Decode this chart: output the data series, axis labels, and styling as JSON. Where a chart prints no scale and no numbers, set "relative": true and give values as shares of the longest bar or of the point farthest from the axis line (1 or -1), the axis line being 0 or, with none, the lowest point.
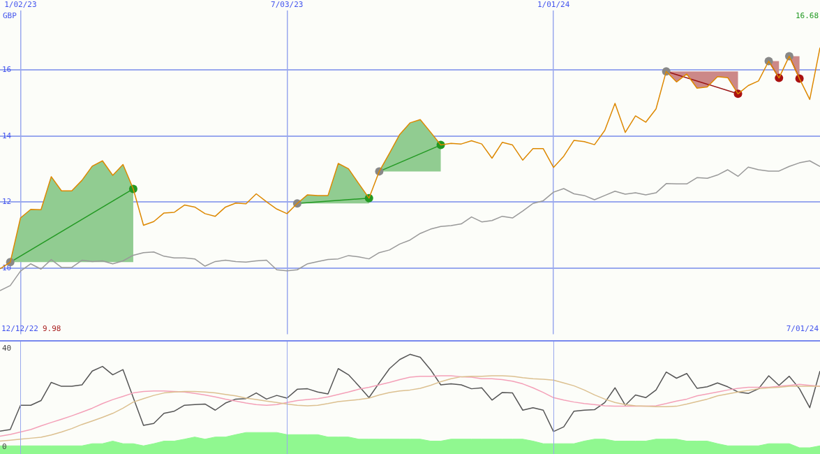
{
  "chart_data": [
    {
      "type": "line",
      "ylabel": "GBP",
      "x": [
        "2022-12-19",
        "2022-12-26",
        "2023-01-02",
        "2023-01-09",
        "2023-01-16",
        "2023-01-23",
        "2023-01-30",
        "2023-02-06",
        "2023-02-13",
        "2023-02-20",
        "2023-02-27",
        "2023-03-06",
        "2023-03-13",
        "2023-03-20",
        "2023-03-27",
        "2023-04-03",
        "2023-04-10",
        "2023-04-17",
        "2023-04-24",
        "2023-05-01",
        "2023-05-08",
        "2023-05-15",
        "2023-05-22",
        "2023-05-29",
        "2023-06-05",
        "2023-06-12",
        "2023-06-19",
        "2023-06-26",
        "2023-07-03",
        "2023-07-10",
        "2023-07-17",
        "2023-07-24",
        "2023-07-31",
        "2023-08-07",
        "2023-08-14",
        "2023-08-21",
        "2023-08-28",
        "2023-09-04",
        "2023-09-11",
        "2023-09-18",
        "2023-09-25",
        "2023-10-02",
        "2023-10-09",
        "2023-10-16",
        "2023-10-23",
        "2023-10-30",
        "2023-11-06",
        "2023-11-13",
        "2023-11-20",
        "2023-11-27",
        "2023-12-04",
        "2023-12-11",
        "2023-12-18",
        "2023-12-25",
        "2024-01-01",
        "2024-01-08",
        "2024-01-15",
        "2024-01-22",
        "2024-01-29",
        "2024-02-05",
        "2024-02-12",
        "2024-02-19",
        "2024-02-26",
        "2024-03-04",
        "2024-03-11",
        "2024-03-18",
        "2024-03-25",
        "2024-04-01",
        "2024-04-08",
        "2024-04-15",
        "2024-04-22",
        "2024-04-29",
        "2024-05-06",
        "2024-05-13",
        "2024-05-20",
        "2024-05-27",
        "2024-06-03",
        "2024-06-10",
        "2024-06-17",
        "2024-06-24",
        "2024-07-01"
      ],
      "series": [
        {
          "color": "#999999",
          "values": [
            9.32,
            9.47,
            9.91,
            10.13,
            9.97,
            10.26,
            10.02,
            10.02,
            10.24,
            10.2,
            10.22,
            10.13,
            10.22,
            10.39,
            10.47,
            10.49,
            10.36,
            10.31,
            10.31,
            10.28,
            10.06,
            10.2,
            10.24,
            10.2,
            10.18,
            10.22,
            10.24,
            9.95,
            9.92,
            9.95,
            10.13,
            10.2,
            10.26,
            10.28,
            10.38,
            10.34,
            10.28,
            10.47,
            10.55,
            10.73,
            10.85,
            11.05,
            11.18,
            11.26,
            11.29,
            11.34,
            11.55,
            11.4,
            11.44,
            11.57,
            11.52,
            11.73,
            11.96,
            12.04,
            12.3,
            12.41,
            12.25,
            12.2,
            12.07,
            12.2,
            12.33,
            12.24,
            12.28,
            12.22,
            12.28,
            12.56,
            12.55,
            12.55,
            12.74,
            12.72,
            12.82,
            12.98,
            12.78,
            13.06,
            12.98,
            12.94,
            12.94,
            13.08,
            13.19,
            13.25,
            13.08
          ]
        },
        {
          "color": "#dd8800",
          "values": [
            9.98,
            10.18,
            11.52,
            11.78,
            11.77,
            12.77,
            12.34,
            12.34,
            12.66,
            13.09,
            13.25,
            12.81,
            13.14,
            12.4,
            11.3,
            11.41,
            11.67,
            11.69,
            11.91,
            11.85,
            11.65,
            11.57,
            11.85,
            11.97,
            11.95,
            12.25,
            12.01,
            11.79,
            11.65,
            11.96,
            12.22,
            12.2,
            12.2,
            13.17,
            13.01,
            12.56,
            12.12,
            12.93,
            13.48,
            14.05,
            14.4,
            14.5,
            14.12,
            13.73,
            13.78,
            13.76,
            13.86,
            13.76,
            13.33,
            13.81,
            13.73,
            13.27,
            13.62,
            13.62,
            13.05,
            13.39,
            13.87,
            13.83,
            13.74,
            14.17,
            14.99,
            14.11,
            14.61,
            14.42,
            14.82,
            15.96,
            15.64,
            15.88,
            15.45,
            15.49,
            15.8,
            15.77,
            15.28,
            15.53,
            15.67,
            16.27,
            15.76,
            16.42,
            15.74,
            15.11,
            16.68
          ]
        },
        {
          "color": "#229922",
          "marker": "circle",
          "x": [
            "2022-12-26",
            "2023-01-02",
            "2023-01-09",
            "2023-01-16",
            "2023-01-23",
            "2023-01-30",
            "2023-02-06",
            "2023-02-13",
            "2023-02-20",
            "2023-02-27",
            "2023-03-06",
            "2023-03-13",
            "2023-03-20"
          ],
          "values": [
            10.18,
            null,
            null,
            null,
            null,
            null,
            null,
            null,
            null,
            null,
            null,
            null,
            12.4
          ],
          "colors": [
            "#888888",
            null,
            null,
            null,
            null,
            null,
            null,
            null,
            null,
            null,
            null,
            null,
            "#229922"
          ],
          "lower": [
            10.18,
            10.18,
            10.18,
            10.18,
            10.18,
            10.18,
            10.18,
            10.18,
            10.18,
            10.18,
            10.18,
            10.18,
            10.18
          ],
          "upper": [
            10.18,
            11.52,
            11.78,
            11.77,
            12.77,
            12.34,
            12.34,
            12.66,
            13.09,
            13.25,
            12.81,
            13.14,
            12.4
          ]
        },
        {
          "color": "#229922",
          "marker": "circle",
          "x": [
            "2023-07-10",
            "2023-07-17",
            "2023-07-24",
            "2023-07-31",
            "2023-08-07",
            "2023-08-14",
            "2023-08-21",
            "2023-08-28"
          ],
          "values": [
            11.96,
            null,
            null,
            null,
            null,
            null,
            null,
            12.12
          ],
          "colors": [
            "#888888",
            null,
            null,
            null,
            null,
            null,
            null,
            "#229922"
          ],
          "lower": [
            11.96,
            11.96,
            11.96,
            11.96,
            11.96,
            11.96,
            11.96,
            11.96
          ],
          "upper": [
            11.96,
            12.22,
            12.2,
            12.2,
            13.17,
            13.01,
            12.56,
            12.12
          ]
        },
        {
          "color": "#229922",
          "marker": "circle",
          "x": [
            "2023-09-04",
            "2023-09-11",
            "2023-09-18",
            "2023-09-25",
            "2023-10-02",
            "2023-10-09",
            "2023-10-16"
          ],
          "values": [
            12.93,
            null,
            null,
            null,
            null,
            null,
            13.73
          ],
          "colors": [
            "#888888",
            null,
            null,
            null,
            null,
            null,
            "#229922"
          ],
          "lower": [
            12.93,
            12.93,
            12.93,
            12.93,
            12.93,
            12.93,
            12.93
          ],
          "upper": [
            12.93,
            13.48,
            14.05,
            14.4,
            14.5,
            14.12,
            13.73
          ]
        },
        {
          "color": "#991111",
          "marker": "circle",
          "x": [
            "2024-03-18",
            "2024-03-25",
            "2024-04-01",
            "2024-04-08",
            "2024-04-15",
            "2024-04-22",
            "2024-04-29",
            "2024-05-06"
          ],
          "values": [
            15.96,
            null,
            null,
            null,
            null,
            null,
            null,
            15.28
          ],
          "colors": [
            "#888888",
            null,
            null,
            null,
            null,
            null,
            null,
            "#aa1111"
          ],
          "lower": [
            15.96,
            15.64,
            15.88,
            15.45,
            15.49,
            15.8,
            15.77,
            15.28
          ],
          "upper": [
            15.96,
            15.96,
            15.96,
            15.96,
            15.96,
            15.96,
            15.96,
            15.96
          ]
        },
        {
          "color": "#991111",
          "marker": "circle",
          "x": [
            "2024-05-27",
            "2024-06-03"
          ],
          "values": [
            16.27,
            15.76
          ],
          "colors": [
            "#888888",
            "#aa1111"
          ],
          "lower": [
            16.27,
            15.76
          ],
          "upper": [
            16.27,
            16.27
          ]
        },
        {
          "color": "#991111",
          "marker": "circle",
          "x": [
            "2024-06-10",
            "2024-06-17"
          ],
          "values": [
            16.42,
            15.74
          ],
          "colors": [
            "#888888",
            "#aa1111"
          ],
          "lower": [
            16.42,
            15.74
          ],
          "upper": [
            16.42,
            16.42
          ]
        }
      ],
      "xlim": [
        "2022-12-19",
        "2024-07-01"
      ],
      "xticks": [
        {
          "value": "2023-01-02",
          "label": "1/02/23"
        },
        {
          "value": "2023-07-03",
          "label": "7/03/23"
        },
        {
          "value": "2024-01-01",
          "label": "1/01/24"
        }
      ],
      "ylim": [
        8,
        17.8
      ],
      "yticks": [
        10,
        12,
        14,
        16
      ],
      "grid": true,
      "annotations": [
        "12/12/22",
        "9.98",
        "7/01/24",
        "16.68"
      ]
    },
    {
      "type": "line",
      "categories": [
        null,
        null,
        null,
        null,
        null,
        null,
        null,
        null,
        null,
        null,
        null,
        null,
        null,
        null,
        null,
        null,
        null,
        null,
        null,
        null,
        null,
        null,
        null,
        null,
        null,
        null,
        null,
        null,
        null,
        null,
        null,
        null,
        null,
        null,
        null,
        null,
        null,
        null,
        null,
        null,
        null,
        null,
        null,
        null,
        null,
        null,
        null,
        null,
        null,
        null,
        null,
        null,
        null,
        null,
        null,
        null,
        null,
        null,
        null,
        null,
        null,
        null,
        null,
        null,
        null,
        null,
        null,
        null,
        null,
        null,
        null,
        null,
        null,
        null,
        null,
        null,
        null,
        null,
        null,
        null,
        null
      ],
      "series": [
        {
          "color": "#dcc090",
          "values": [
            2.5,
            2.9,
            3.3,
            3.7,
            4.1,
            5.0,
            6.2,
            7.6,
            9.3,
            10.7,
            12.2,
            13.8,
            15.9,
            18.4,
            19.8,
            21.1,
            22.1,
            22.5,
            22.7,
            22.7,
            22.5,
            22.1,
            21.5,
            20.9,
            20.0,
            19.4,
            18.8,
            18.2,
            17.6,
            17.1,
            16.9,
            17.1,
            17.8,
            18.6,
            19.0,
            19.4,
            20.0,
            21.3,
            22.3,
            22.9,
            23.3,
            24.0,
            25.2,
            26.7,
            27.9,
            28.7,
            28.9,
            28.9,
            29.1,
            29.1,
            28.9,
            28.3,
            27.9,
            27.7,
            27.3,
            26.2,
            25.0,
            23.3,
            21.3,
            19.6,
            18.2,
            17.4,
            16.9,
            16.7,
            16.5,
            16.5,
            16.7,
            17.6,
            18.6,
            19.6,
            20.9,
            21.7,
            22.5,
            23.1,
            23.8,
            24.2,
            24.4,
            24.8,
            24.8,
            24.8,
            24.8
          ]
        },
        {
          "color": "#f4a0b8",
          "values": [
            4.5,
            5.2,
            6.2,
            7.2,
            8.7,
            10.1,
            11.4,
            12.8,
            14.3,
            15.9,
            17.8,
            19.4,
            20.7,
            22.1,
            22.7,
            22.9,
            22.9,
            22.7,
            22.5,
            21.9,
            21.3,
            20.5,
            19.6,
            18.8,
            18.0,
            17.4,
            17.1,
            17.4,
            18.2,
            19.0,
            19.4,
            19.8,
            20.5,
            21.5,
            22.5,
            23.6,
            24.4,
            25.4,
            26.4,
            27.5,
            28.5,
            28.9,
            28.9,
            29.1,
            29.1,
            28.7,
            28.5,
            27.9,
            27.9,
            27.5,
            26.9,
            25.8,
            24.2,
            22.3,
            20.2,
            19.2,
            18.4,
            17.8,
            17.4,
            16.9,
            16.7,
            16.7,
            16.7,
            16.7,
            16.9,
            17.8,
            18.8,
            19.6,
            20.9,
            21.7,
            22.5,
            23.3,
            24.0,
            24.4,
            24.4,
            24.4,
            24.8,
            25.2,
            25.6,
            25.2,
            24.8
          ]
        },
        {
          "color": "#555555",
          "values": [
            6.6,
            7.2,
            17.1,
            17.1,
            19.0,
            26.4,
            24.8,
            24.8,
            25.4,
            31.0,
            32.9,
            29.5,
            31.6,
            20.2,
            8.9,
            9.7,
            13.8,
            14.7,
            17.1,
            17.4,
            17.6,
            15.1,
            18.0,
            19.6,
            19.8,
            22.1,
            19.6,
            21.1,
            20.0,
            23.6,
            23.8,
            22.5,
            21.7,
            32.0,
            29.5,
            25.0,
            20.2,
            26.2,
            32.0,
            35.7,
            37.8,
            36.6,
            31.6,
            25.4,
            25.8,
            25.4,
            23.8,
            24.2,
            19.2,
            22.3,
            22.1,
            15.1,
            16.1,
            15.1,
            6.4,
            8.3,
            14.7,
            15.1,
            15.3,
            18.2,
            24.2,
            17.1,
            21.3,
            20.2,
            23.3,
            30.6,
            28.1,
            30.0,
            24.0,
            24.6,
            26.2,
            24.6,
            22.5,
            21.9,
            23.8,
            29.1,
            25.2,
            28.9,
            23.8,
            16.1,
            31.0
          ]
        }
      ],
      "ylim": [
        0,
        40
      ],
      "yticks": [
        0,
        40
      ],
      "tick_labels": "y"
    },
    {
      "type": "area",
      "relative": true,
      "tick_labels": false,
      "categories": [
        null,
        null,
        null,
        null,
        null,
        null,
        null,
        null,
        null,
        null,
        null,
        null,
        null,
        null,
        null,
        null,
        null,
        null,
        null,
        null,
        null,
        null,
        null,
        null,
        null,
        null,
        null,
        null,
        null,
        null,
        null,
        null,
        null,
        null,
        null,
        null,
        null,
        null,
        null,
        null,
        null,
        null,
        null,
        null,
        null,
        null,
        null,
        null,
        null,
        null,
        null,
        null,
        null,
        null,
        null,
        null,
        null,
        null,
        null,
        null,
        null,
        null,
        null,
        null,
        null,
        null,
        null,
        null,
        null,
        null,
        null,
        null,
        null,
        null,
        null,
        null,
        null,
        null,
        null,
        null,
        null
      ],
      "color": "#90f890",
      "values": [
        0.38,
        0.38,
        0.38,
        0.38,
        0.38,
        0.38,
        0.38,
        0.38,
        0.38,
        0.48,
        0.48,
        0.6,
        0.48,
        0.48,
        0.38,
        0.48,
        0.6,
        0.6,
        0.69,
        0.79,
        0.69,
        0.79,
        0.79,
        0.9,
        1,
        1,
        1,
        1,
        0.9,
        0.9,
        0.9,
        0.9,
        0.79,
        0.79,
        0.79,
        0.69,
        0.69,
        0.69,
        0.69,
        0.69,
        0.69,
        0.69,
        0.6,
        0.6,
        0.69,
        0.69,
        0.69,
        0.69,
        0.69,
        0.69,
        0.69,
        0.69,
        0.6,
        0.48,
        0.48,
        0.48,
        0.48,
        0.6,
        0.69,
        0.69,
        0.6,
        0.6,
        0.6,
        0.6,
        0.69,
        0.69,
        0.69,
        0.6,
        0.6,
        0.6,
        0.48,
        0.38,
        0.38,
        0.38,
        0.38,
        0.48,
        0.48,
        0.48,
        0.29,
        0.29,
        0.38
      ]
    }
  ]
}
